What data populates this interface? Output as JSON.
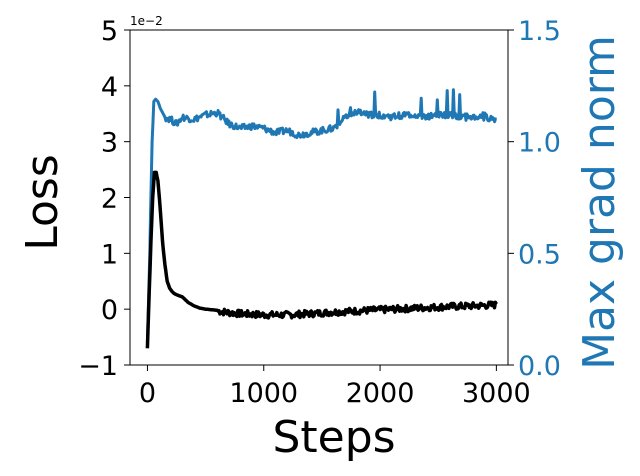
{
  "chart_data": {
    "type": "line",
    "xlabel": "Steps",
    "ylabel": "Loss",
    "y2label": "Max grad norm",
    "xlim": [
      -150,
      3100
    ],
    "ylim": [
      -1,
      5
    ],
    "y2lim": [
      0.0,
      1.5
    ],
    "x_ticks": [
      0,
      1000,
      2000,
      3000
    ],
    "x_tick_labels": [
      "0",
      "1000",
      "2000",
      "3000"
    ],
    "y_ticks": [
      -1,
      0,
      1,
      2,
      3,
      4,
      5
    ],
    "y_tick_labels": [
      "−1",
      "0",
      "1",
      "2",
      "3",
      "4",
      "5"
    ],
    "y_offset_label": "1e−2",
    "y2_ticks": [
      0.0,
      0.5,
      1.0,
      1.5
    ],
    "y2_tick_labels": [
      "0.0",
      "0.5",
      "1.0",
      "1.5"
    ],
    "grid": false,
    "legend": "none",
    "colors": {
      "loss": "#000000",
      "grad": "#1f77b4"
    },
    "series": [
      {
        "axis": "left",
        "color": "#000000",
        "x": [
          0,
          15,
          30,
          45,
          60,
          75,
          90,
          110,
          130,
          150,
          170,
          190,
          210,
          230,
          260,
          300,
          350,
          400,
          450,
          500,
          600,
          700,
          800,
          900,
          1000,
          1200,
          1400,
          1600,
          1800,
          2000,
          2200,
          2400,
          2600,
          2800,
          3000
        ],
        "values": [
          -0.7,
          0.3,
          1.2,
          2.0,
          2.45,
          2.45,
          2.3,
          1.8,
          1.2,
          0.8,
          0.5,
          0.38,
          0.32,
          0.28,
          0.25,
          0.22,
          0.12,
          0.06,
          0.02,
          0.0,
          -0.02,
          -0.05,
          -0.07,
          -0.08,
          -0.09,
          -0.09,
          -0.07,
          -0.04,
          -0.02,
          0.0,
          0.02,
          0.04,
          0.06,
          0.07,
          0.09
        ]
      },
      {
        "axis": "right",
        "color": "#1f77b4",
        "x": [
          0,
          20,
          40,
          55,
          70,
          90,
          110,
          150,
          200,
          250,
          300,
          400,
          500,
          600,
          700,
          800,
          900,
          1000,
          1100,
          1200,
          1300,
          1400,
          1500,
          1600,
          1700,
          1800,
          1900,
          2000,
          2100,
          2200,
          2300,
          2400,
          2500,
          2600,
          2700,
          2800,
          2900,
          3000
        ],
        "values": [
          0.1,
          0.5,
          1.0,
          1.18,
          1.19,
          1.18,
          1.15,
          1.11,
          1.1,
          1.08,
          1.11,
          1.1,
          1.12,
          1.13,
          1.08,
          1.06,
          1.07,
          1.06,
          1.04,
          1.05,
          1.03,
          1.04,
          1.05,
          1.06,
          1.11,
          1.13,
          1.12,
          1.12,
          1.11,
          1.12,
          1.12,
          1.11,
          1.12,
          1.12,
          1.11,
          1.11,
          1.11,
          1.1
        ]
      }
    ]
  }
}
